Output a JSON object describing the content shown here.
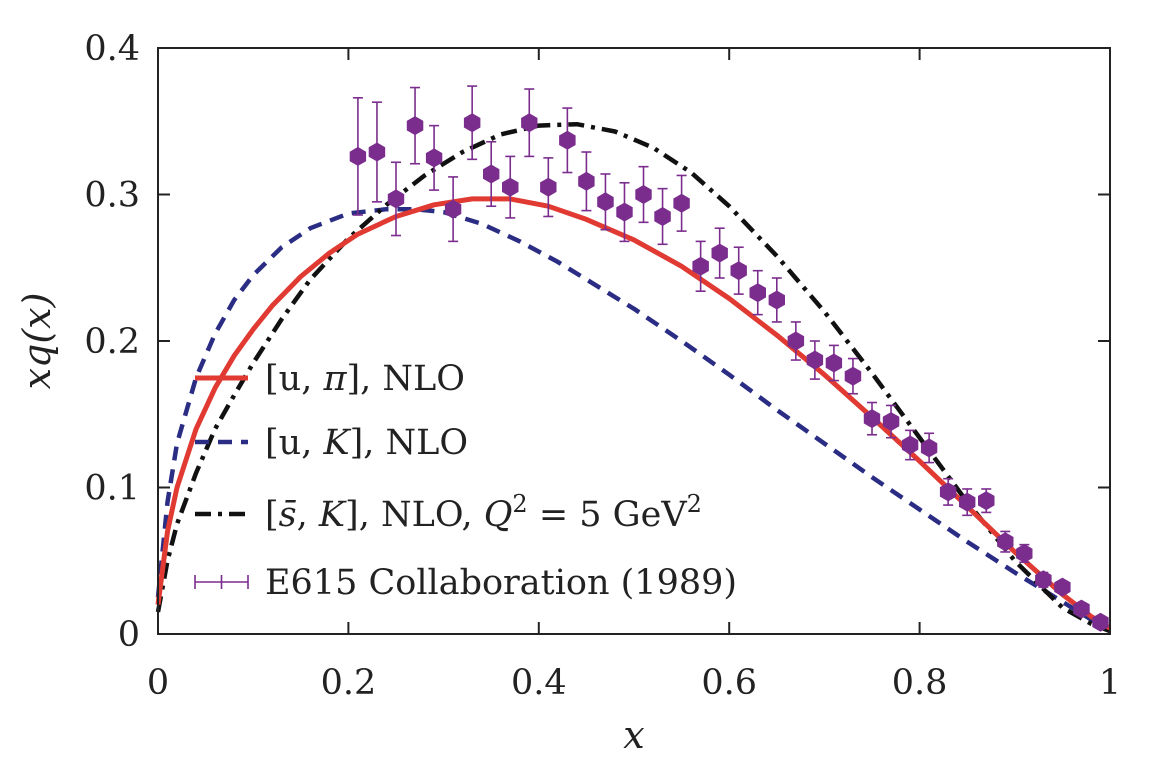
{
  "chart_data": {
    "type": "line",
    "title": "",
    "xlabel": "x",
    "ylabel": "xq(x)",
    "xlim": [
      0,
      1
    ],
    "ylim": [
      0,
      0.4
    ],
    "xticks": [
      "0",
      "0.2",
      "0.4",
      "0.6",
      "0.8",
      "1"
    ],
    "yticks": [
      "0",
      "0.1",
      "0.2",
      "0.3",
      "0.4"
    ],
    "legend_position": "bottom-left",
    "series": [
      {
        "name": "[u, π], NLO",
        "style": "solid",
        "color": "#e03a33",
        "x": [
          0,
          0.01,
          0.02,
          0.04,
          0.06,
          0.08,
          0.1,
          0.12,
          0.15,
          0.18,
          0.21,
          0.25,
          0.29,
          0.33,
          0.37,
          0.41,
          0.45,
          0.5,
          0.55,
          0.6,
          0.65,
          0.7,
          0.75,
          0.8,
          0.85,
          0.9,
          0.95,
          0.98,
          1.0
        ],
        "y": [
          0.02,
          0.07,
          0.1,
          0.14,
          0.168,
          0.19,
          0.208,
          0.224,
          0.244,
          0.26,
          0.273,
          0.285,
          0.293,
          0.297,
          0.297,
          0.292,
          0.283,
          0.269,
          0.251,
          0.229,
          0.204,
          0.177,
          0.148,
          0.118,
          0.087,
          0.056,
          0.027,
          0.012,
          0.004
        ]
      },
      {
        "name": "[u, K], NLO",
        "style": "dashed",
        "color": "#2b2d84",
        "x": [
          0,
          0.01,
          0.02,
          0.04,
          0.06,
          0.08,
          0.1,
          0.13,
          0.16,
          0.2,
          0.24,
          0.27,
          0.3,
          0.34,
          0.38,
          0.42,
          0.46,
          0.5,
          0.55,
          0.6,
          0.65,
          0.7,
          0.75,
          0.8,
          0.85,
          0.9,
          0.95,
          0.98,
          1.0
        ],
        "y": [
          0.025,
          0.09,
          0.13,
          0.175,
          0.205,
          0.228,
          0.245,
          0.264,
          0.277,
          0.287,
          0.29,
          0.29,
          0.288,
          0.28,
          0.268,
          0.254,
          0.238,
          0.222,
          0.2,
          0.177,
          0.153,
          0.13,
          0.107,
          0.085,
          0.063,
          0.042,
          0.022,
          0.01,
          0.003
        ]
      },
      {
        "name": "[s̄, K], NLO, Q² = 5 GeV²",
        "style": "dashdot",
        "color": "#111111",
        "x": [
          0,
          0.01,
          0.02,
          0.04,
          0.06,
          0.08,
          0.1,
          0.13,
          0.16,
          0.2,
          0.24,
          0.28,
          0.32,
          0.36,
          0.4,
          0.44,
          0.48,
          0.52,
          0.56,
          0.6,
          0.65,
          0.7,
          0.75,
          0.8,
          0.85,
          0.9,
          0.95,
          0.98,
          1.0
        ],
        "y": [
          0.015,
          0.05,
          0.075,
          0.11,
          0.14,
          0.163,
          0.185,
          0.215,
          0.242,
          0.27,
          0.293,
          0.313,
          0.329,
          0.341,
          0.347,
          0.348,
          0.343,
          0.332,
          0.315,
          0.292,
          0.258,
          0.22,
          0.178,
          0.134,
          0.09,
          0.05,
          0.018,
          0.007,
          0.002
        ]
      }
    ],
    "data_series": {
      "name": "E615 Collaboration (1989)",
      "color": "#7b2d8e",
      "points": [
        {
          "x": 0.21,
          "y": 0.326,
          "err": 0.04
        },
        {
          "x": 0.23,
          "y": 0.329,
          "err": 0.034
        },
        {
          "x": 0.25,
          "y": 0.297,
          "err": 0.025
        },
        {
          "x": 0.27,
          "y": 0.347,
          "err": 0.026
        },
        {
          "x": 0.29,
          "y": 0.325,
          "err": 0.022
        },
        {
          "x": 0.31,
          "y": 0.29,
          "err": 0.022
        },
        {
          "x": 0.33,
          "y": 0.349,
          "err": 0.025
        },
        {
          "x": 0.35,
          "y": 0.314,
          "err": 0.022
        },
        {
          "x": 0.37,
          "y": 0.305,
          "err": 0.021
        },
        {
          "x": 0.39,
          "y": 0.349,
          "err": 0.023
        },
        {
          "x": 0.41,
          "y": 0.305,
          "err": 0.02
        },
        {
          "x": 0.43,
          "y": 0.337,
          "err": 0.022
        },
        {
          "x": 0.45,
          "y": 0.309,
          "err": 0.02
        },
        {
          "x": 0.47,
          "y": 0.295,
          "err": 0.019
        },
        {
          "x": 0.49,
          "y": 0.288,
          "err": 0.02
        },
        {
          "x": 0.51,
          "y": 0.3,
          "err": 0.019
        },
        {
          "x": 0.53,
          "y": 0.285,
          "err": 0.019
        },
        {
          "x": 0.55,
          "y": 0.294,
          "err": 0.019
        },
        {
          "x": 0.57,
          "y": 0.251,
          "err": 0.017
        },
        {
          "x": 0.59,
          "y": 0.26,
          "err": 0.017
        },
        {
          "x": 0.61,
          "y": 0.248,
          "err": 0.016
        },
        {
          "x": 0.63,
          "y": 0.233,
          "err": 0.015
        },
        {
          "x": 0.65,
          "y": 0.228,
          "err": 0.015
        },
        {
          "x": 0.67,
          "y": 0.2,
          "err": 0.013
        },
        {
          "x": 0.69,
          "y": 0.187,
          "err": 0.013
        },
        {
          "x": 0.71,
          "y": 0.185,
          "err": 0.012
        },
        {
          "x": 0.73,
          "y": 0.176,
          "err": 0.012
        },
        {
          "x": 0.75,
          "y": 0.147,
          "err": 0.011
        },
        {
          "x": 0.77,
          "y": 0.145,
          "err": 0.011
        },
        {
          "x": 0.79,
          "y": 0.129,
          "err": 0.01
        },
        {
          "x": 0.81,
          "y": 0.127,
          "err": 0.01
        },
        {
          "x": 0.83,
          "y": 0.097,
          "err": 0.009
        },
        {
          "x": 0.85,
          "y": 0.09,
          "err": 0.009
        },
        {
          "x": 0.87,
          "y": 0.091,
          "err": 0.008
        },
        {
          "x": 0.89,
          "y": 0.063,
          "err": 0.007
        },
        {
          "x": 0.91,
          "y": 0.055,
          "err": 0.006
        },
        {
          "x": 0.93,
          "y": 0.037,
          "err": 0.005
        },
        {
          "x": 0.95,
          "y": 0.032,
          "err": 0.004
        },
        {
          "x": 0.97,
          "y": 0.017,
          "err": 0.003
        },
        {
          "x": 0.99,
          "y": 0.008,
          "err": 0.002
        }
      ]
    }
  },
  "legend": {
    "entries": [
      {
        "bracket_open": "[u, ",
        "symbol": "π",
        "bracket_close": "], NLO"
      },
      {
        "bracket_open": "[u, ",
        "symbol": "K",
        "bracket_close": "], NLO"
      },
      {
        "bracket_open": "[",
        "symbol": "s̄",
        "mid": ", ",
        "symbol2": "K",
        "bracket_close": "], NLO, ",
        "q_symbol": "Q",
        "q_exp": "2",
        "q_rest": " = 5 GeV",
        "q_exp2": "2"
      },
      {
        "label": "E615 Collaboration (1989)"
      }
    ]
  }
}
